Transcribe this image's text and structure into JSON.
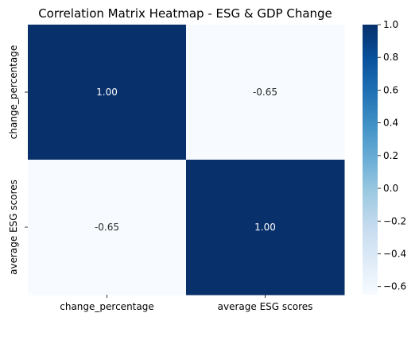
{
  "chart_data": {
    "type": "heatmap",
    "title": "Correlation Matrix Heatmap - ESG & GDP Change",
    "x_categories": [
      "change_percentage",
      "average ESG scores"
    ],
    "y_categories": [
      "change_percentage",
      "average ESG scores"
    ],
    "values": [
      [
        1.0,
        -0.65
      ],
      [
        -0.65,
        1.0
      ]
    ],
    "annotations": [
      [
        "1.00",
        "-0.65"
      ],
      [
        "-0.65",
        "1.00"
      ]
    ],
    "colormap": "Blues",
    "color_low": "#f7fbff",
    "color_high": "#08306b",
    "vmin": -0.65,
    "vmax": 1.0,
    "colorbar": {
      "ticks": [
        1.0,
        0.8,
        0.6,
        0.4,
        0.2,
        0.0,
        -0.2,
        -0.4,
        -0.6
      ],
      "tick_labels": [
        "1.0",
        "0.8",
        "0.6",
        "0.4",
        "0.2",
        "0.0",
        "−0.2",
        "−0.4",
        "−0.6"
      ]
    },
    "annotation_text_dark_bg": "#ffffff",
    "annotation_text_light_bg": "#262626"
  }
}
